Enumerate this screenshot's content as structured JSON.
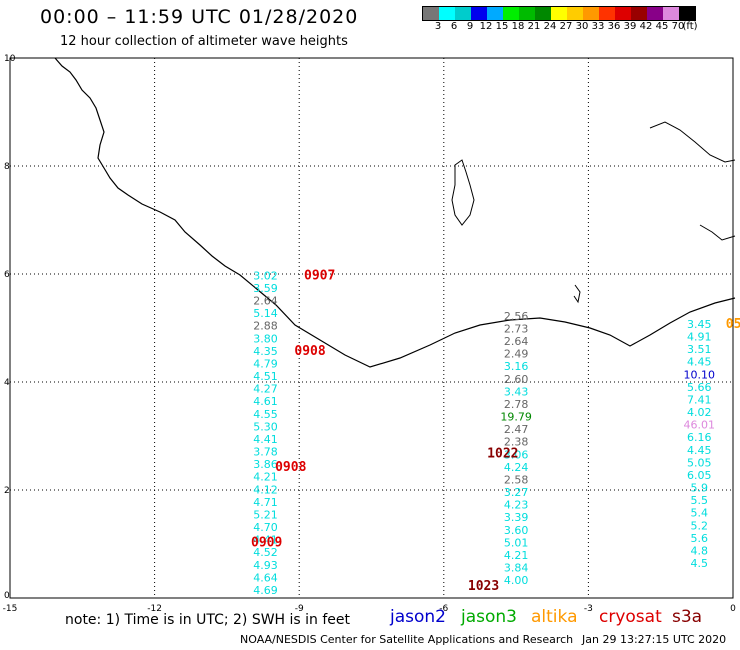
{
  "header": {
    "title": "00:00 – 11:59 UTC 01/28/2020",
    "subtitle": "12 hour collection of altimeter wave heights"
  },
  "colorbar": {
    "colors": [
      "#777777",
      "#00ffff",
      "#00cccc",
      "#0000ee",
      "#00aaff",
      "#00ee00",
      "#00bb00",
      "#008800",
      "#ffff00",
      "#ffcc00",
      "#ff9900",
      "#ff3300",
      "#dd0000",
      "#990000",
      "#880088",
      "#dd88dd",
      "#000000"
    ],
    "labels": [
      "3",
      "6",
      "9",
      "12",
      "15",
      "18",
      "21",
      "24",
      "27",
      "30",
      "33",
      "36",
      "39",
      "42",
      "45",
      "70",
      "(ft)"
    ]
  },
  "map": {
    "x_ticks": [
      "-15",
      "-12",
      "-9",
      "-6",
      "-3",
      "0"
    ],
    "y_ticks": [
      "0",
      "2",
      "4",
      "6",
      "8",
      "10"
    ],
    "xlim": [
      -15,
      0
    ],
    "ylim": [
      0,
      10
    ]
  },
  "swh_tracks": [
    {
      "lon": -9.7,
      "lat0": 5.9,
      "dlat": -0.233,
      "color": "#00dddd",
      "values": [
        "3.02",
        "3.59",
        "2.64",
        "5.14",
        "2.88",
        "3.80",
        "4.35",
        "4.79",
        "4.51",
        "4.27",
        "4.61",
        "4.55",
        "5.30",
        "4.41",
        "3.78",
        "3.86",
        "4.21",
        "4.12",
        "4.71",
        "5.21",
        "4.70",
        "4.41",
        "4.52",
        "4.93",
        "4.64",
        "4.69"
      ],
      "colors": [
        "#00dddd",
        "#00dddd",
        "#666666",
        "#00dddd",
        "#666666",
        "#00dddd",
        "#00dddd",
        "#00dddd",
        "#00dddd",
        "#00dddd",
        "#00dddd",
        "#00dddd",
        "#00dddd",
        "#00dddd",
        "#00dddd",
        "#00dddd",
        "#00dddd",
        "#00dddd",
        "#00dddd",
        "#00dddd",
        "#00dddd",
        "#00dddd",
        "#00dddd",
        "#00dddd",
        "#00dddd",
        "#00dddd"
      ]
    },
    {
      "lon": -4.5,
      "lat0": 5.15,
      "dlat": -0.233,
      "color": "#666666",
      "values": [
        "2.56",
        "2.73",
        "2.64",
        "2.49",
        "3.16",
        "2.60",
        "3.43",
        "2.78",
        "19.79",
        "2.47",
        "2.38",
        "3.06",
        "4.24",
        "2.58",
        "3.27",
        "4.23",
        "3.39",
        "3.60",
        "5.01",
        "4.21",
        "3.84",
        "4.00"
      ],
      "colors": [
        "#666666",
        "#666666",
        "#666666",
        "#666666",
        "#00dddd",
        "#666666",
        "#00dddd",
        "#666666",
        "#008800",
        "#666666",
        "#666666",
        "#00dddd",
        "#00dddd",
        "#666666",
        "#00dddd",
        "#00dddd",
        "#00dddd",
        "#00dddd",
        "#00dddd",
        "#00dddd",
        "#00dddd",
        "#00dddd"
      ]
    },
    {
      "lon": -0.7,
      "lat0": 5.0,
      "dlat": -0.233,
      "color": "#00dddd",
      "values": [
        "3.45",
        "4.91",
        "3.51",
        "4.45",
        "10.10",
        "5.66",
        "7.41",
        "4.02",
        "46.01",
        "6.16",
        "4.45",
        "5.05",
        "6.05",
        "5.9",
        "5.5",
        "5.4",
        "5.2",
        "5.6",
        "4.8",
        "4.5"
      ],
      "colors": [
        "#00dddd",
        "#00dddd",
        "#00dddd",
        "#00dddd",
        "#0000cc",
        "#00dddd",
        "#00dddd",
        "#00dddd",
        "#dd88dd",
        "#00dddd",
        "#00dddd",
        "#00dddd",
        "#00dddd",
        "#00dddd",
        "#00dddd",
        "#00dddd",
        "#00dddd",
        "#00dddd",
        "#00dddd",
        "#00dddd"
      ]
    }
  ],
  "time_labels": [
    {
      "text": "0907",
      "lon": -8.9,
      "lat": 5.9,
      "color": "#dd0000"
    },
    {
      "text": "0908",
      "lon": -9.1,
      "lat": 4.5,
      "color": "#dd0000"
    },
    {
      "text": "0908",
      "lon": -9.5,
      "lat": 2.35,
      "color": "#dd0000"
    },
    {
      "text": "0909",
      "lon": -10.0,
      "lat": 0.95,
      "color": "#dd0000"
    },
    {
      "text": "1022",
      "lon": -5.1,
      "lat": 2.6,
      "color": "#880000"
    },
    {
      "text": "1023",
      "lon": -5.5,
      "lat": 0.15,
      "color": "#880000"
    },
    {
      "text": "05",
      "lon": -0.15,
      "lat": 5.0,
      "color": "#ff9900"
    }
  ],
  "note": "note: 1) Time is in UTC; 2) SWH is in feet",
  "legend": [
    {
      "label": "jason2",
      "color": "#0000cc"
    },
    {
      "label": "jason3",
      "color": "#00aa00"
    },
    {
      "label": "altika",
      "color": "#ff9900"
    },
    {
      "label": "cryosat",
      "color": "#dd0000"
    },
    {
      "label": "s3a",
      "color": "#880000"
    }
  ],
  "footer": "NOAA/NESDIS Center for Satellite Applications and Research",
  "footer_time": "Jan 29 13:27:15 UTC 2020"
}
